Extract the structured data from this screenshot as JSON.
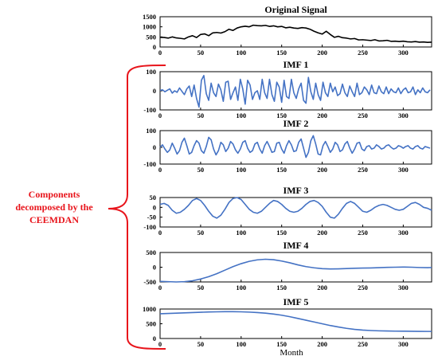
{
  "figure": {
    "annotation_lines": [
      "Components",
      "decomposed by the",
      "CEEMDAN"
    ],
    "annotation_color": "#e8141b",
    "xlabel": "Month"
  },
  "chart_data": [
    {
      "type": "line",
      "title": "Original Signal",
      "line_color": "#000000",
      "xlim": [
        0,
        335
      ],
      "ylim": [
        0,
        1500
      ],
      "xticks": [
        0,
        50,
        100,
        150,
        200,
        250,
        300
      ],
      "yticks": [
        0,
        500,
        1000,
        1500
      ],
      "x": [
        0,
        5,
        10,
        15,
        20,
        25,
        30,
        35,
        40,
        45,
        50,
        55,
        60,
        65,
        70,
        75,
        80,
        85,
        90,
        95,
        100,
        105,
        110,
        115,
        120,
        125,
        130,
        135,
        140,
        145,
        150,
        155,
        160,
        165,
        170,
        175,
        180,
        185,
        190,
        195,
        200,
        205,
        210,
        215,
        220,
        225,
        230,
        235,
        240,
        245,
        250,
        255,
        260,
        265,
        270,
        275,
        280,
        285,
        290,
        295,
        300,
        305,
        310,
        315,
        320,
        325,
        330,
        335
      ],
      "y": [
        480,
        470,
        440,
        500,
        450,
        430,
        400,
        500,
        560,
        470,
        620,
        650,
        560,
        700,
        720,
        690,
        760,
        880,
        820,
        940,
        1000,
        1030,
        1000,
        1080,
        1060,
        1050,
        1070,
        1020,
        1050,
        1000,
        1020,
        950,
        980,
        940,
        920,
        960,
        940,
        880,
        780,
        700,
        640,
        780,
        620,
        480,
        530,
        460,
        440,
        400,
        420,
        350,
        360,
        340,
        320,
        360,
        300,
        310,
        330,
        280,
        290,
        270,
        290,
        260,
        250,
        270,
        240,
        250,
        230,
        240
      ]
    },
    {
      "type": "line",
      "title": "IMF 1",
      "line_color": "#4472c4",
      "xlim": [
        0,
        335
      ],
      "ylim": [
        -100,
        100
      ],
      "xticks": [
        0,
        50,
        100,
        150,
        200,
        250,
        300
      ],
      "yticks": [
        -100,
        0,
        100
      ],
      "x": [
        0,
        3,
        6,
        9,
        12,
        15,
        18,
        21,
        24,
        27,
        30,
        33,
        36,
        39,
        42,
        45,
        48,
        51,
        54,
        57,
        60,
        63,
        66,
        69,
        72,
        75,
        78,
        81,
        84,
        87,
        90,
        93,
        96,
        99,
        102,
        105,
        108,
        111,
        114,
        117,
        120,
        123,
        126,
        129,
        132,
        135,
        138,
        141,
        144,
        147,
        150,
        153,
        156,
        159,
        162,
        165,
        168,
        171,
        174,
        177,
        180,
        183,
        186,
        189,
        192,
        195,
        198,
        201,
        204,
        207,
        210,
        213,
        216,
        219,
        222,
        225,
        228,
        231,
        234,
        237,
        240,
        243,
        246,
        249,
        252,
        255,
        258,
        261,
        264,
        267,
        270,
        273,
        276,
        279,
        282,
        285,
        288,
        291,
        294,
        297,
        300,
        303,
        306,
        309,
        312,
        315,
        318,
        321,
        324,
        327,
        330,
        333
      ],
      "y": [
        2,
        5,
        -5,
        3,
        10,
        -12,
        0,
        -8,
        15,
        -3,
        -20,
        10,
        25,
        -30,
        30,
        -40,
        -85,
        55,
        80,
        -15,
        -50,
        40,
        -10,
        -30,
        35,
        5,
        -55,
        45,
        50,
        -45,
        -10,
        20,
        -50,
        60,
        10,
        -70,
        55,
        30,
        -45,
        -10,
        0,
        -45,
        60,
        -10,
        -40,
        60,
        -20,
        -55,
        45,
        20,
        -60,
        55,
        -30,
        -40,
        60,
        -10,
        -40,
        10,
        40,
        -50,
        -65,
        70,
        -5,
        -45,
        40,
        -20,
        -50,
        45,
        -10,
        -30,
        40,
        -5,
        20,
        -25,
        -15,
        35,
        -10,
        -30,
        25,
        -5,
        -30,
        40,
        -20,
        -10,
        20,
        5,
        -20,
        30,
        -10,
        -15,
        25,
        -5,
        -15,
        20,
        -15,
        10,
        -5,
        -10,
        15,
        -15,
        5,
        15,
        -10,
        -5,
        20,
        -20,
        5,
        -10,
        15,
        -5,
        -10,
        5
      ]
    },
    {
      "type": "line",
      "title": "IMF 2",
      "line_color": "#4472c4",
      "xlim": [
        0,
        335
      ],
      "ylim": [
        -100,
        100
      ],
      "xticks": [
        0,
        50,
        100,
        150,
        200,
        250,
        300
      ],
      "yticks": [
        -100,
        0,
        100
      ],
      "x": [
        0,
        3,
        6,
        9,
        12,
        15,
        18,
        21,
        24,
        27,
        30,
        33,
        36,
        39,
        42,
        45,
        48,
        51,
        54,
        57,
        60,
        63,
        66,
        69,
        72,
        75,
        78,
        81,
        84,
        87,
        90,
        93,
        96,
        99,
        102,
        105,
        108,
        111,
        114,
        117,
        120,
        123,
        126,
        129,
        132,
        135,
        138,
        141,
        144,
        147,
        150,
        153,
        156,
        159,
        162,
        165,
        168,
        171,
        174,
        177,
        180,
        183,
        186,
        189,
        192,
        195,
        198,
        201,
        204,
        207,
        210,
        213,
        216,
        219,
        222,
        225,
        228,
        231,
        234,
        237,
        240,
        243,
        246,
        249,
        252,
        255,
        258,
        261,
        264,
        267,
        270,
        273,
        276,
        279,
        282,
        285,
        288,
        291,
        294,
        297,
        300,
        303,
        306,
        309,
        312,
        315,
        318,
        321,
        324,
        327,
        330,
        333
      ],
      "y": [
        0,
        15,
        -10,
        -30,
        -15,
        25,
        -5,
        -40,
        -20,
        30,
        55,
        10,
        -40,
        -30,
        10,
        40,
        25,
        -20,
        -35,
        5,
        60,
        45,
        -10,
        -45,
        -20,
        30,
        15,
        -25,
        -5,
        35,
        20,
        -15,
        -35,
        -10,
        30,
        40,
        -5,
        -30,
        -20,
        20,
        30,
        -10,
        -35,
        10,
        35,
        5,
        -30,
        -25,
        25,
        30,
        -10,
        -35,
        10,
        40,
        15,
        -25,
        -20,
        30,
        50,
        -5,
        -60,
        -30,
        40,
        70,
        20,
        -40,
        -45,
        10,
        35,
        5,
        -30,
        -10,
        30,
        15,
        -25,
        -15,
        20,
        35,
        -5,
        -35,
        -10,
        25,
        30,
        -10,
        -20,
        5,
        10,
        -10,
        -5,
        15,
        5,
        -10,
        -5,
        10,
        15,
        0,
        -10,
        -5,
        10,
        5,
        -5,
        5,
        10,
        -5,
        -10,
        5,
        10,
        -5,
        -10,
        5,
        0,
        -5
      ]
    },
    {
      "type": "line",
      "title": "IMF 3",
      "line_color": "#4472c4",
      "xlim": [
        0,
        335
      ],
      "ylim": [
        -100,
        50
      ],
      "xticks": [
        0,
        50,
        100,
        150,
        200,
        250,
        300
      ],
      "yticks": [
        -100,
        -50,
        0,
        50
      ],
      "x": [
        0,
        5,
        10,
        15,
        20,
        25,
        30,
        35,
        40,
        45,
        50,
        55,
        60,
        65,
        70,
        75,
        80,
        85,
        90,
        95,
        100,
        105,
        110,
        115,
        120,
        125,
        130,
        135,
        140,
        145,
        150,
        155,
        160,
        165,
        170,
        175,
        180,
        185,
        190,
        195,
        200,
        205,
        210,
        215,
        220,
        225,
        230,
        235,
        240,
        245,
        250,
        255,
        260,
        265,
        270,
        275,
        280,
        285,
        290,
        295,
        300,
        305,
        310,
        315,
        320,
        325,
        330,
        335
      ],
      "y": [
        15,
        20,
        10,
        -15,
        -30,
        -25,
        -10,
        10,
        35,
        45,
        35,
        10,
        -20,
        -45,
        -55,
        -40,
        -10,
        25,
        45,
        50,
        40,
        15,
        -10,
        -25,
        -30,
        -20,
        0,
        20,
        35,
        30,
        15,
        -5,
        -20,
        -25,
        -20,
        -5,
        15,
        30,
        35,
        25,
        5,
        -25,
        -50,
        -55,
        -35,
        -5,
        20,
        30,
        20,
        0,
        -20,
        -25,
        -15,
        0,
        10,
        15,
        10,
        0,
        -10,
        -15,
        -10,
        5,
        20,
        25,
        15,
        0,
        -5,
        -15
      ]
    },
    {
      "type": "line",
      "title": "IMF 4",
      "line_color": "#4472c4",
      "xlim": [
        0,
        335
      ],
      "ylim": [
        -500,
        500
      ],
      "xticks": [
        0,
        50,
        100,
        150,
        200,
        250,
        300
      ],
      "yticks": [
        -500,
        0,
        500
      ],
      "x": [
        0,
        10,
        20,
        30,
        40,
        50,
        60,
        70,
        80,
        90,
        100,
        110,
        120,
        130,
        140,
        150,
        160,
        170,
        180,
        190,
        200,
        210,
        220,
        230,
        240,
        250,
        260,
        270,
        280,
        290,
        300,
        310,
        320,
        330,
        335
      ],
      "y": [
        -480,
        -490,
        -500,
        -490,
        -460,
        -400,
        -320,
        -220,
        -100,
        20,
        120,
        200,
        250,
        270,
        255,
        210,
        150,
        80,
        20,
        -20,
        -50,
        -60,
        -55,
        -45,
        -35,
        -30,
        -25,
        -15,
        -5,
        0,
        5,
        0,
        -10,
        -15,
        -10
      ]
    },
    {
      "type": "line",
      "title": "IMF 5",
      "line_color": "#4472c4",
      "xlim": [
        0,
        335
      ],
      "ylim": [
        0,
        1000
      ],
      "xticks": [
        0,
        50,
        100,
        150,
        200,
        250,
        300
      ],
      "yticks": [
        0,
        500,
        1000
      ],
      "x": [
        0,
        10,
        20,
        30,
        40,
        50,
        60,
        70,
        80,
        90,
        100,
        110,
        120,
        130,
        140,
        150,
        160,
        170,
        180,
        190,
        200,
        210,
        220,
        230,
        240,
        250,
        260,
        270,
        280,
        290,
        300,
        310,
        320,
        330,
        335
      ],
      "y": [
        840,
        850,
        860,
        870,
        880,
        890,
        900,
        905,
        910,
        910,
        905,
        895,
        880,
        860,
        830,
        790,
        740,
        680,
        620,
        560,
        500,
        440,
        390,
        345,
        310,
        285,
        270,
        260,
        255,
        250,
        248,
        245,
        242,
        240,
        240
      ]
    }
  ]
}
